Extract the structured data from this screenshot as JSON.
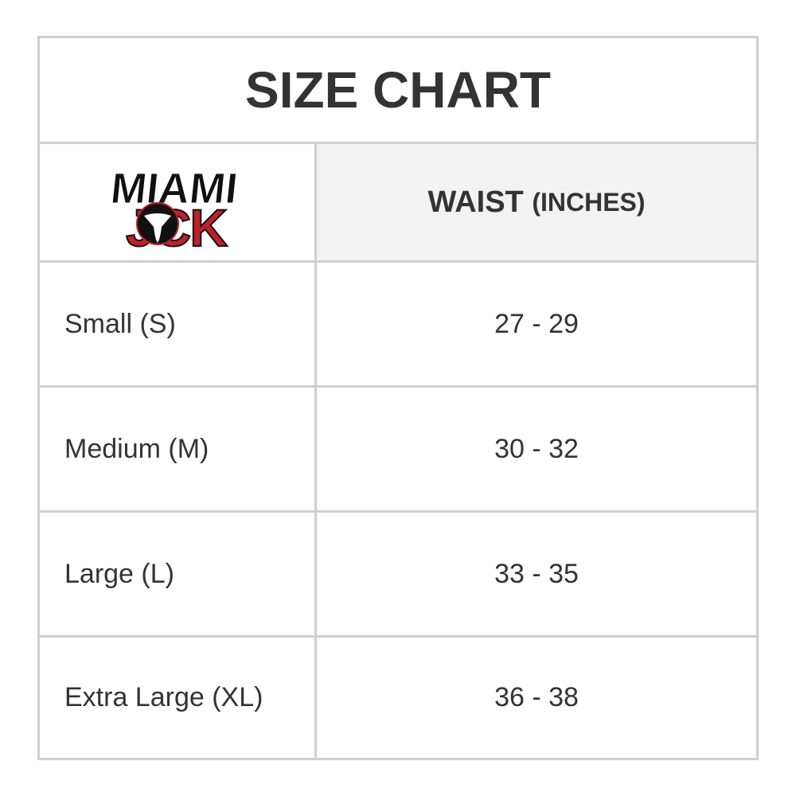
{
  "title": "SIZE CHART",
  "logo": {
    "line1": "MIAMI",
    "line2": "JOCK",
    "colors": {
      "black": "#111111",
      "red": "#c0202a"
    }
  },
  "header": {
    "col2_main": "WAIST",
    "col2_unit": "(INCHES)"
  },
  "rows": [
    {
      "size": "Small (S)",
      "waist": "27 - 29"
    },
    {
      "size": "Medium (M)",
      "waist": "30 - 32"
    },
    {
      "size": "Large (L)",
      "waist": "33 - 35"
    },
    {
      "size": "Extra Large (XL)",
      "waist": "36 - 38"
    }
  ]
}
